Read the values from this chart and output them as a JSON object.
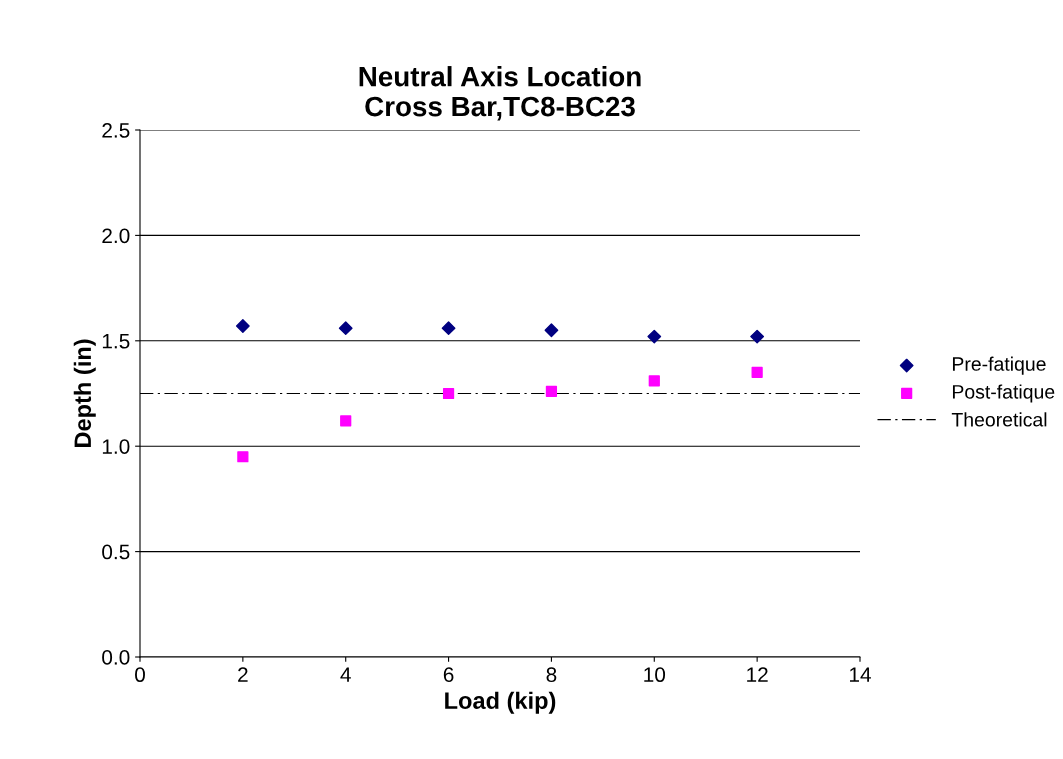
{
  "chart_data": {
    "type": "scatter",
    "title": "Neutral Axis Location\nCross Bar,TC8-BC23",
    "xlabel": "Load (kip)",
    "ylabel": "Depth (in)",
    "x": [
      2,
      4,
      6,
      8,
      10,
      12
    ],
    "series": [
      {
        "name": "Pre-fatique",
        "color": "#000080",
        "marker": "diamond",
        "values": [
          1.57,
          1.56,
          1.56,
          1.55,
          1.52,
          1.52
        ]
      },
      {
        "name": "Post-fatique",
        "color": "#ff00ff",
        "marker": "square",
        "values": [
          0.95,
          1.12,
          1.25,
          1.26,
          1.31,
          1.35
        ]
      },
      {
        "name": "Theoretical",
        "type": "line",
        "color": "#000000",
        "line_style": "dashed",
        "marker": "none",
        "x": [
          0,
          14
        ],
        "values": [
          1.25,
          1.25
        ]
      }
    ],
    "xlim": [
      0,
      14
    ],
    "xticks": [
      0,
      2,
      4,
      6,
      8,
      10,
      12,
      14
    ],
    "ylim": [
      0,
      2.5
    ],
    "yticks": [
      {
        "value": 0,
        "label": "0.0"
      },
      {
        "value": 0.5,
        "label": "0.5"
      },
      {
        "value": 1,
        "label": "1.0"
      },
      {
        "value": 1.5,
        "label": "1.5"
      },
      {
        "value": 2,
        "label": "2.0"
      },
      {
        "value": 2.5,
        "label": "2.5"
      }
    ],
    "grid": "y",
    "legend": "right"
  }
}
